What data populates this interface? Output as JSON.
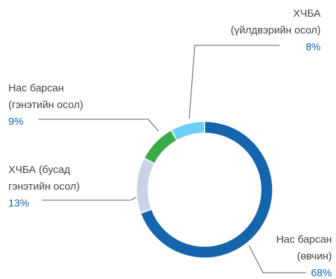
{
  "chart_data": {
    "type": "donut",
    "categories": [
      [
        "Нас барсан",
        "(өвчин)"
      ],
      [
        "ХЧБА (бусад",
        "гэнэтийн осол)"
      ],
      [
        "Нас барсан",
        "(гэнэтийн осол)"
      ],
      [
        "ХЧБА",
        "(үйлдвэрийн осол)"
      ]
    ],
    "values": [
      68,
      13,
      9,
      8
    ],
    "value_labels": [
      "68%",
      "13%",
      "9%",
      "8%"
    ],
    "colors": [
      "#1565ad",
      "#c9d3e8",
      "#3aaa48",
      "#6ecff6"
    ]
  }
}
